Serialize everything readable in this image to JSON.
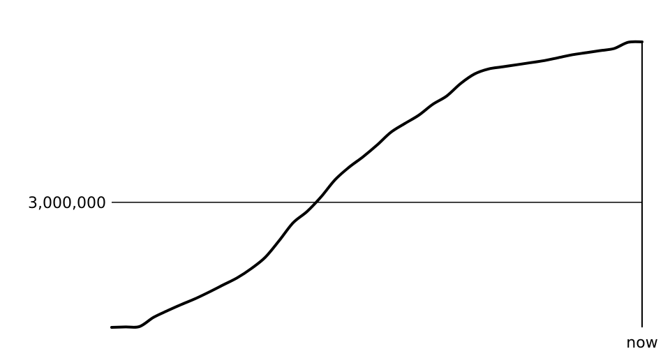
{
  "chart_data": {
    "type": "line",
    "title": "",
    "xlabel": "",
    "ylabel": "",
    "x_tick_labels": [
      {
        "x": 38,
        "label": "now"
      }
    ],
    "y_tick_labels": [
      {
        "y": 3000000,
        "label": "3,000,000"
      }
    ],
    "xlim": [
      0,
      38
    ],
    "ylim": [
      0,
      7000000
    ],
    "grid": false,
    "line_color": "#000000",
    "series": [
      {
        "x": [
          0,
          1,
          2,
          3,
          4,
          5,
          6,
          7,
          8,
          9,
          10,
          11,
          12,
          13,
          14,
          15,
          16,
          17,
          18,
          19,
          20,
          21,
          22,
          23,
          24,
          25,
          26,
          27,
          28,
          29,
          30,
          31,
          32,
          33,
          34,
          35,
          36,
          37,
          38
        ],
        "values": [
          0,
          10000,
          20000,
          240000,
          400000,
          550000,
          690000,
          850000,
          1020000,
          1190000,
          1410000,
          1680000,
          2080000,
          2510000,
          2780000,
          3130000,
          3540000,
          3840000,
          4090000,
          4370000,
          4680000,
          4890000,
          5090000,
          5350000,
          5550000,
          5850000,
          6080000,
          6200000,
          6250000,
          6300000,
          6350000,
          6400000,
          6470000,
          6540000,
          6590000,
          6640000,
          6690000,
          6840000,
          6850000
        ]
      }
    ]
  }
}
